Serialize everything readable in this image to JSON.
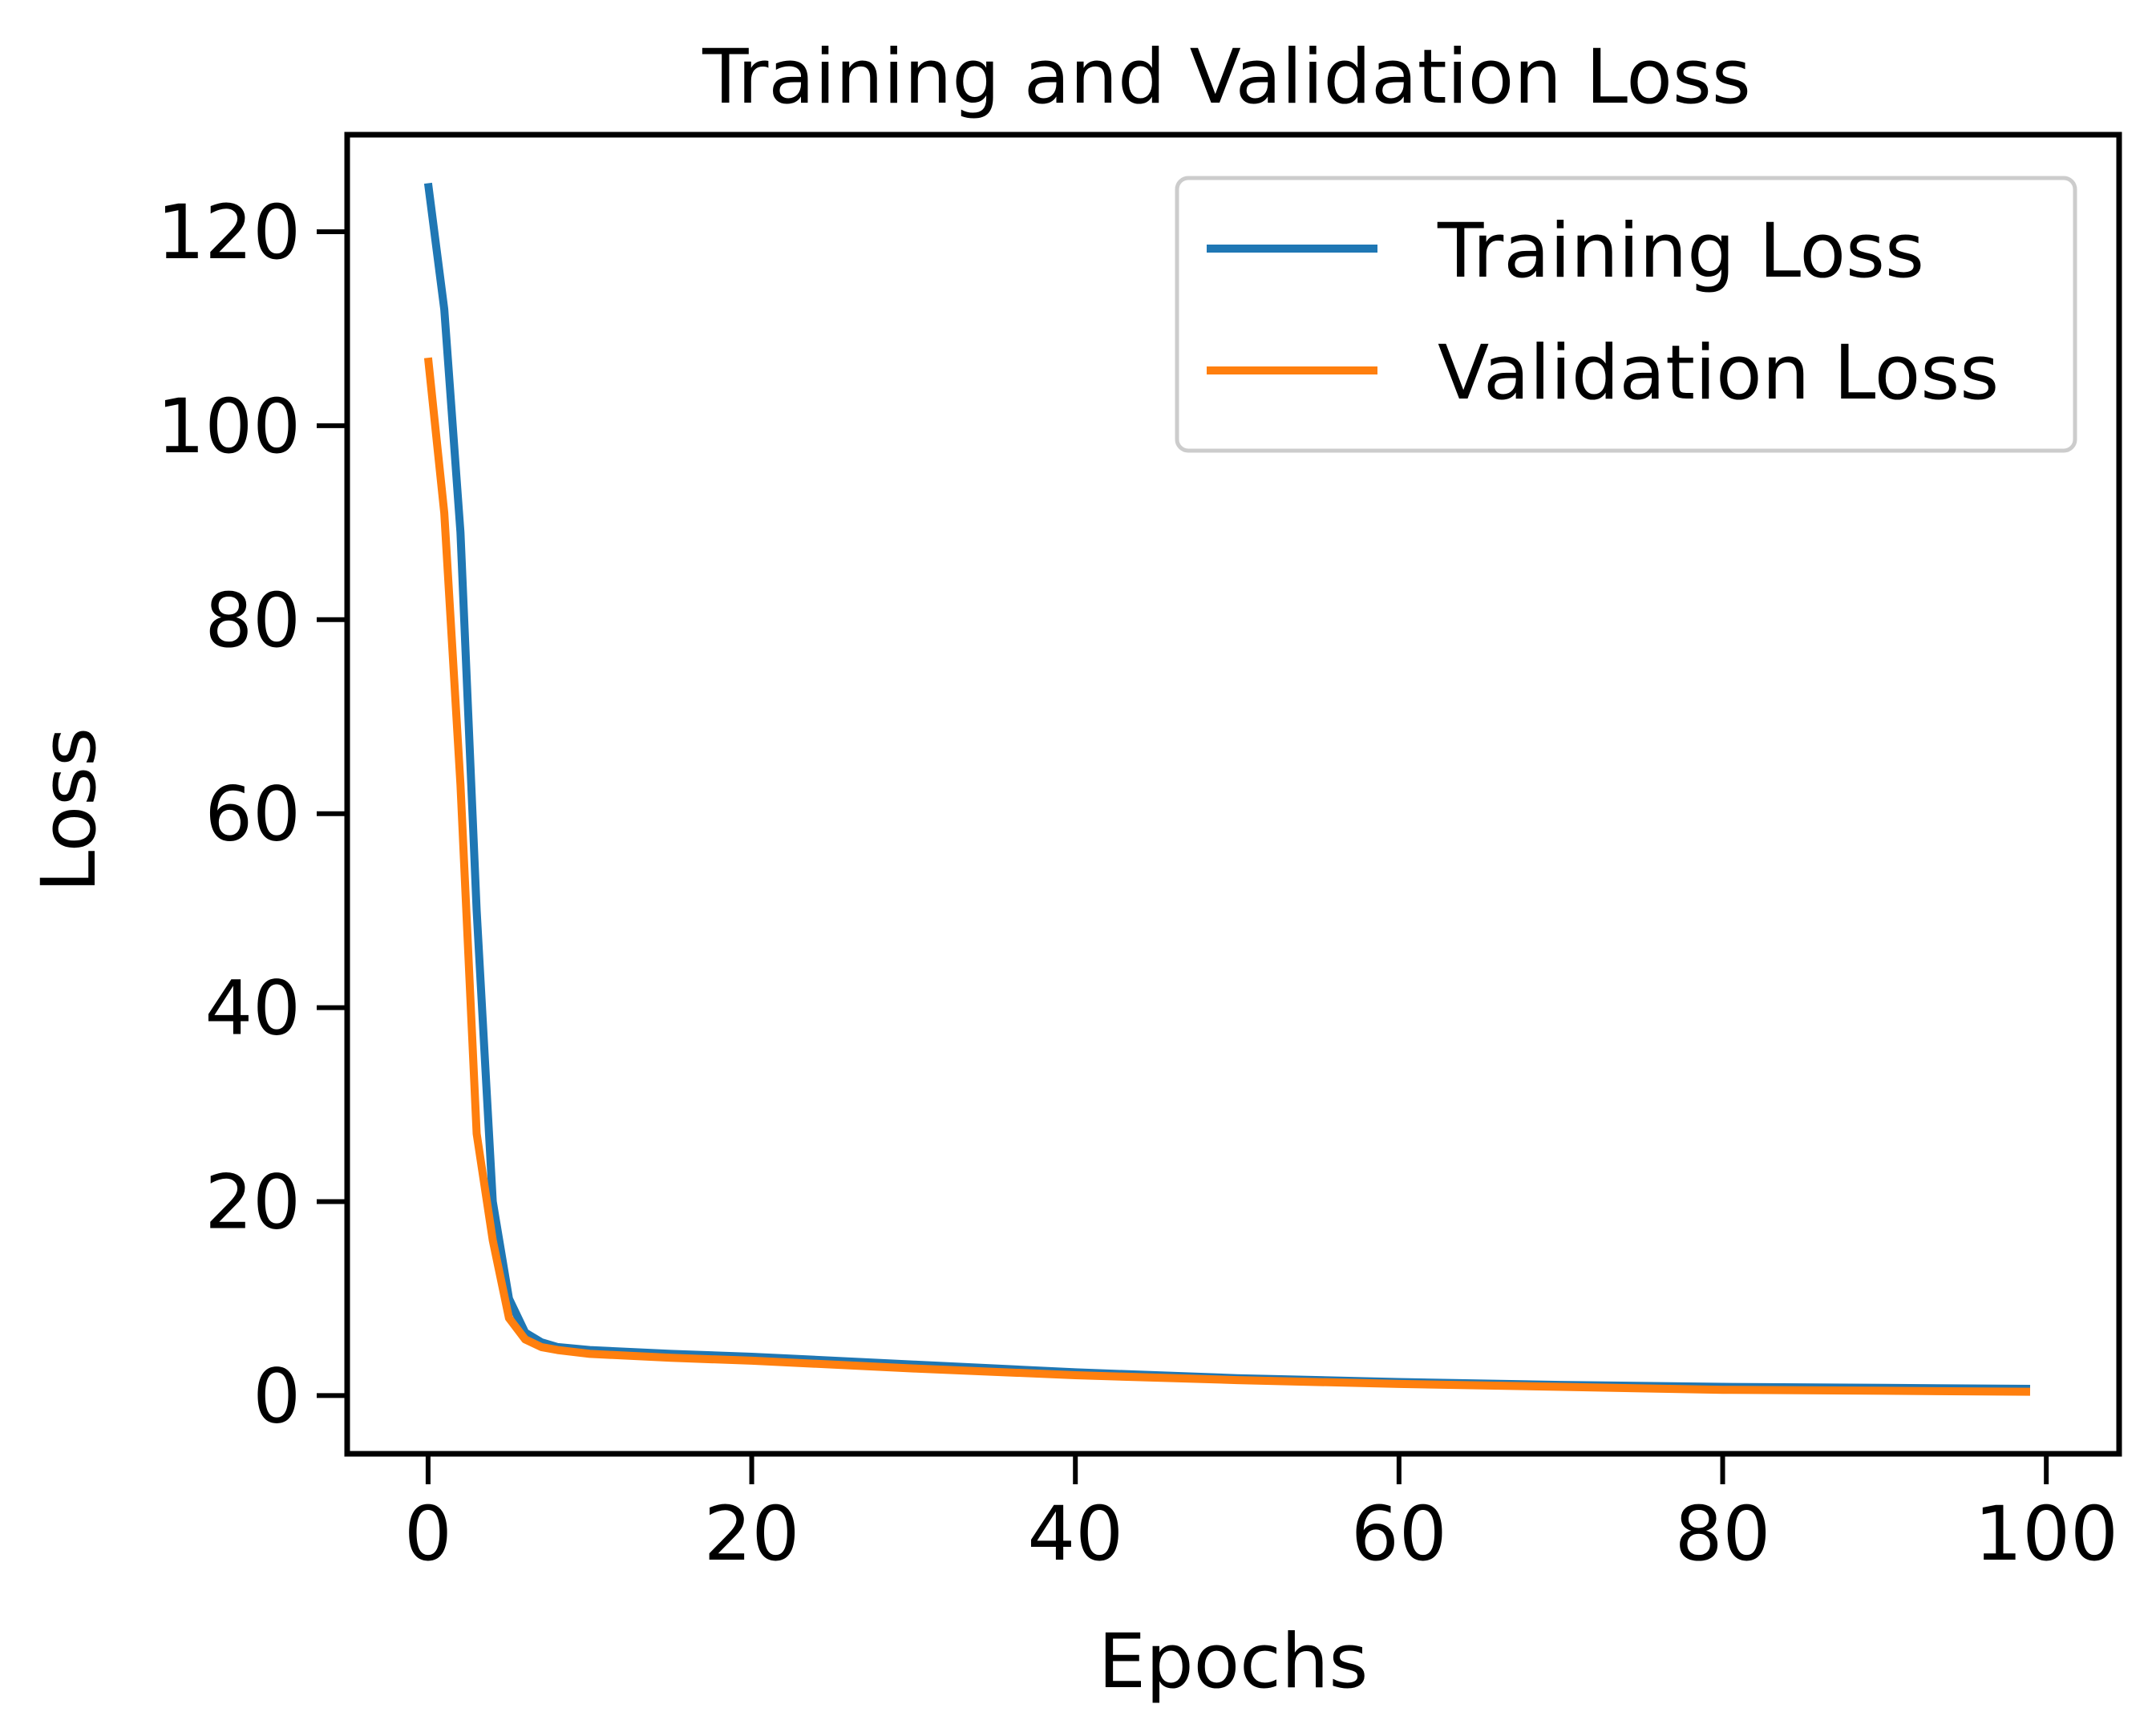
{
  "chart_data": {
    "type": "line",
    "title": "Training and Validation Loss",
    "xlabel": "Epochs",
    "ylabel": "Loss",
    "xlim": [
      -5,
      104.5
    ],
    "ylim": [
      -6,
      130
    ],
    "xticks": [
      0,
      20,
      40,
      60,
      80,
      100
    ],
    "yticks": [
      0,
      20,
      40,
      60,
      80,
      100,
      120
    ],
    "x_tick_labels": [
      "0",
      "20",
      "40",
      "60",
      "80",
      "100"
    ],
    "y_tick_labels": [
      "0",
      "20",
      "40",
      "60",
      "80",
      "100",
      "120"
    ],
    "grid": false,
    "legend_position": "top-right",
    "series": [
      {
        "name": "Training Loss",
        "color": "#1f77b4",
        "x": [
          0,
          1,
          2,
          3,
          4,
          5,
          6,
          7,
          8,
          10,
          15,
          20,
          30,
          40,
          50,
          60,
          70,
          80,
          90,
          99
        ],
        "values": [
          125,
          112,
          89,
          50,
          20,
          10,
          6.5,
          5.5,
          5,
          4.7,
          4.3,
          4,
          3.2,
          2.4,
          1.8,
          1.4,
          1.1,
          0.9,
          0.8,
          0.7
        ]
      },
      {
        "name": "Validation Loss",
        "color": "#ff7f0e",
        "x": [
          0,
          1,
          2,
          3,
          4,
          5,
          6,
          7,
          8,
          10,
          15,
          20,
          30,
          40,
          50,
          60,
          70,
          80,
          90,
          99
        ],
        "values": [
          107,
          91,
          63,
          27,
          16,
          8,
          5.8,
          5,
          4.7,
          4.3,
          3.9,
          3.6,
          2.8,
          2.1,
          1.6,
          1.2,
          0.9,
          0.6,
          0.5,
          0.4
        ]
      }
    ]
  }
}
